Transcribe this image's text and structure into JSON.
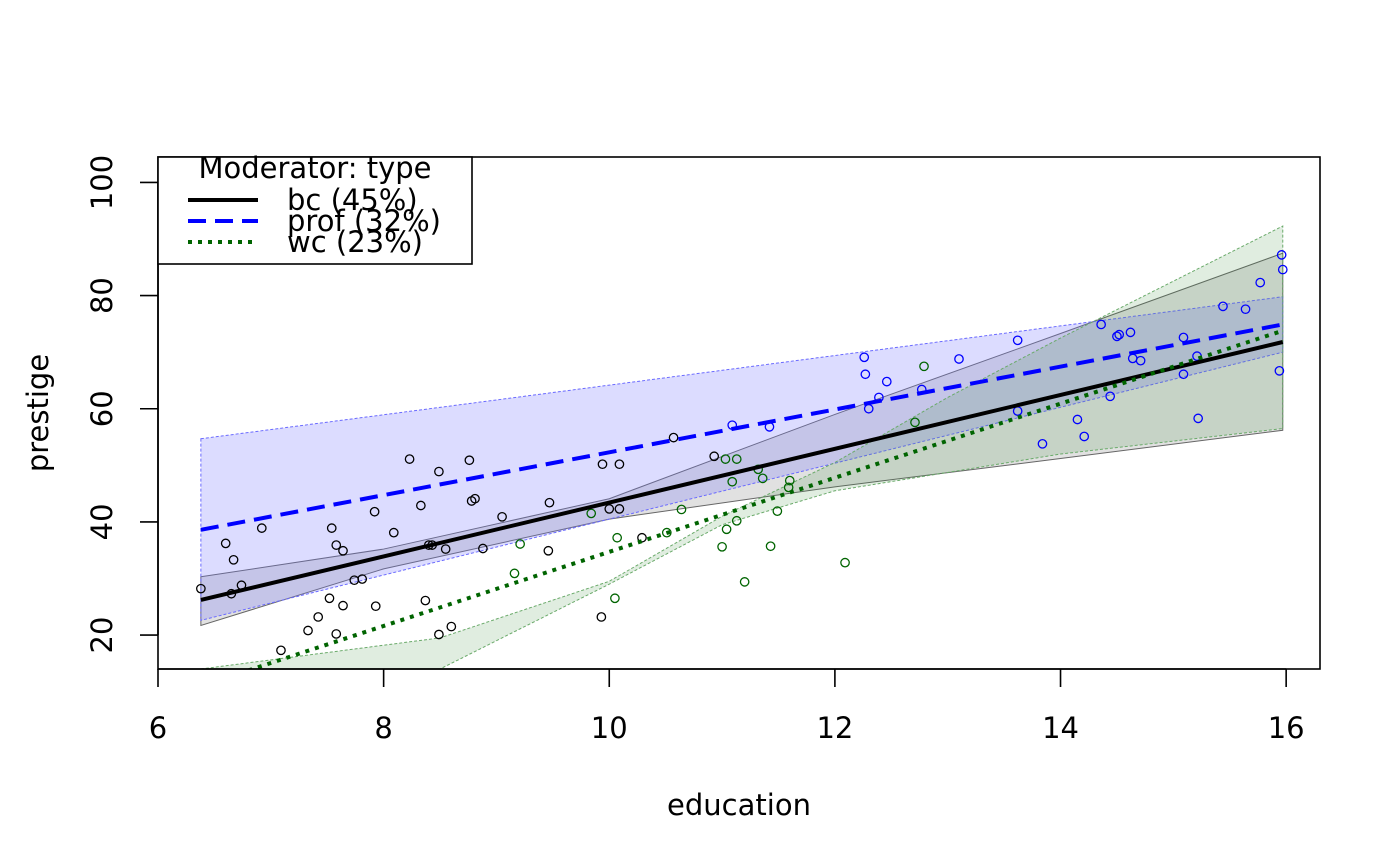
{
  "chart_data": {
    "type": "scatter",
    "xlabel": "education",
    "ylabel": "prestige",
    "xlim": [
      6,
      16.3
    ],
    "ylim": [
      14,
      104.5
    ],
    "xticks": [
      6,
      8,
      10,
      12,
      14,
      16
    ],
    "yticks": [
      20,
      40,
      60,
      80,
      100
    ],
    "legend": {
      "title": "Moderator: type",
      "placement": "top-left",
      "entries": [
        {
          "label": "bc (45%)",
          "color": "#000000",
          "dash": "solid"
        },
        {
          "label": "prof (32%)",
          "color": "#0000ff",
          "dash": "dashed"
        },
        {
          "label": "wc (23%)",
          "color": "#006400",
          "dash": "dotted"
        }
      ]
    },
    "series": [
      {
        "name": "bc",
        "color": "#000000",
        "band_fill": "rgba(90,90,90,0.18)",
        "band_stroke": "#666666",
        "fit_x": [
          6.38,
          15.97
        ],
        "fit_y": [
          26.2,
          71.8
        ],
        "band_lower": [
          [
            6.38,
            21.7
          ],
          [
            8.0,
            31.7
          ],
          [
            10.0,
            40.5
          ],
          [
            12.0,
            46.2
          ],
          [
            14.0,
            51.2
          ],
          [
            15.97,
            56.2
          ]
        ],
        "band_upper": [
          [
            6.38,
            30.3
          ],
          [
            8.0,
            35.2
          ],
          [
            10.0,
            44.1
          ],
          [
            12.0,
            59.0
          ],
          [
            14.0,
            73.3
          ],
          [
            15.97,
            87.5
          ]
        ],
        "points": [
          [
            6.38,
            28.2
          ],
          [
            6.6,
            36.2
          ],
          [
            6.67,
            33.3
          ],
          [
            6.65,
            27.3
          ],
          [
            6.74,
            28.8
          ],
          [
            6.92,
            38.9
          ],
          [
            7.09,
            17.3
          ],
          [
            7.33,
            20.8
          ],
          [
            7.42,
            23.2
          ],
          [
            7.52,
            26.5
          ],
          [
            7.54,
            38.9
          ],
          [
            7.58,
            35.9
          ],
          [
            7.58,
            20.2
          ],
          [
            7.64,
            34.9
          ],
          [
            7.64,
            25.2
          ],
          [
            7.74,
            29.7
          ],
          [
            7.81,
            29.9
          ],
          [
            7.93,
            25.1
          ],
          [
            7.92,
            41.8
          ],
          [
            8.09,
            38.1
          ],
          [
            8.23,
            51.1
          ],
          [
            8.33,
            42.9
          ],
          [
            8.37,
            26.1
          ],
          [
            8.4,
            35.9
          ],
          [
            8.43,
            35.9
          ],
          [
            8.49,
            20.1
          ],
          [
            8.49,
            48.9
          ],
          [
            8.55,
            35.2
          ],
          [
            8.6,
            21.5
          ],
          [
            8.76,
            50.9
          ],
          [
            8.78,
            43.7
          ],
          [
            8.81,
            44.1
          ],
          [
            8.88,
            35.3
          ],
          [
            9.05,
            40.9
          ],
          [
            9.46,
            34.9
          ],
          [
            9.47,
            43.4
          ],
          [
            9.93,
            23.2
          ],
          [
            9.94,
            50.2
          ],
          [
            10.0,
            42.3
          ],
          [
            10.09,
            42.3
          ],
          [
            10.09,
            50.2
          ],
          [
            10.29,
            37.2
          ],
          [
            10.57,
            54.9
          ],
          [
            10.93,
            51.6
          ]
        ]
      },
      {
        "name": "prof",
        "color": "#0000ff",
        "band_fill": "rgba(120,120,255,0.26)",
        "band_stroke": "#6a6aff",
        "fit_x": [
          6.38,
          15.97
        ],
        "fit_y": [
          38.6,
          74.9
        ],
        "band_lower": [
          [
            6.38,
            22.6
          ],
          [
            15.97,
            70.0
          ]
        ],
        "band_upper": [
          [
            6.38,
            54.7
          ],
          [
            15.97,
            79.8
          ]
        ],
        "points": [
          [
            11.09,
            57.1
          ],
          [
            11.42,
            56.8
          ],
          [
            12.26,
            69.1
          ],
          [
            12.27,
            66.1
          ],
          [
            12.3,
            60.0
          ],
          [
            12.39,
            62.0
          ],
          [
            12.46,
            64.8
          ],
          [
            12.77,
            63.4
          ],
          [
            13.1,
            68.8
          ],
          [
            13.62,
            72.1
          ],
          [
            13.62,
            59.6
          ],
          [
            13.84,
            53.8
          ],
          [
            14.15,
            58.1
          ],
          [
            14.21,
            55.1
          ],
          [
            14.36,
            74.9
          ],
          [
            14.44,
            62.2
          ],
          [
            14.5,
            72.8
          ],
          [
            14.52,
            73.1
          ],
          [
            14.62,
            73.5
          ],
          [
            14.64,
            68.9
          ],
          [
            14.71,
            68.5
          ],
          [
            15.09,
            66.1
          ],
          [
            15.09,
            72.6
          ],
          [
            15.21,
            69.3
          ],
          [
            15.22,
            58.3
          ],
          [
            15.44,
            78.1
          ],
          [
            15.64,
            77.6
          ],
          [
            15.77,
            82.3
          ],
          [
            15.94,
            66.7
          ],
          [
            15.96,
            87.2
          ],
          [
            15.97,
            84.6
          ]
        ]
      },
      {
        "name": "wc",
        "color": "#006400",
        "band_fill": "rgba(60,140,60,0.16)",
        "band_stroke": "#6aaa6a",
        "fit_x": [
          6.38,
          15.97
        ],
        "fit_y": [
          11.0,
          73.8
        ],
        "band_lower": [
          [
            6.38,
            14.0
          ],
          [
            7.0,
            14.0
          ],
          [
            8.0,
            14.0
          ],
          [
            8.5,
            14.0
          ],
          [
            10.0,
            29.0
          ],
          [
            11.0,
            39.5
          ],
          [
            12.0,
            45.5
          ],
          [
            14.0,
            52.0
          ],
          [
            15.97,
            56.5
          ]
        ],
        "band_upper": [
          [
            6.38,
            14.0
          ],
          [
            8.5,
            19.5
          ],
          [
            10.0,
            29.5
          ],
          [
            11.0,
            41.0
          ],
          [
            12.0,
            50.5
          ],
          [
            13.0,
            62.0
          ],
          [
            14.0,
            72.5
          ],
          [
            15.97,
            92.3
          ]
        ],
        "points": [
          [
            9.84,
            41.5
          ],
          [
            9.16,
            30.9
          ],
          [
            9.21,
            36.1
          ],
          [
            10.05,
            26.5
          ],
          [
            10.07,
            37.2
          ],
          [
            10.51,
            38.1
          ],
          [
            10.64,
            42.2
          ],
          [
            11.0,
            35.6
          ],
          [
            11.03,
            51.1
          ],
          [
            11.04,
            38.7
          ],
          [
            11.09,
            47.1
          ],
          [
            11.13,
            40.2
          ],
          [
            11.13,
            51.1
          ],
          [
            11.2,
            29.4
          ],
          [
            11.32,
            49.3
          ],
          [
            11.36,
            47.7
          ],
          [
            11.43,
            35.7
          ],
          [
            11.49,
            41.9
          ],
          [
            11.59,
            46.1
          ],
          [
            11.6,
            47.3
          ],
          [
            12.09,
            32.8
          ],
          [
            12.71,
            57.6
          ],
          [
            12.79,
            67.5
          ]
        ]
      }
    ]
  }
}
